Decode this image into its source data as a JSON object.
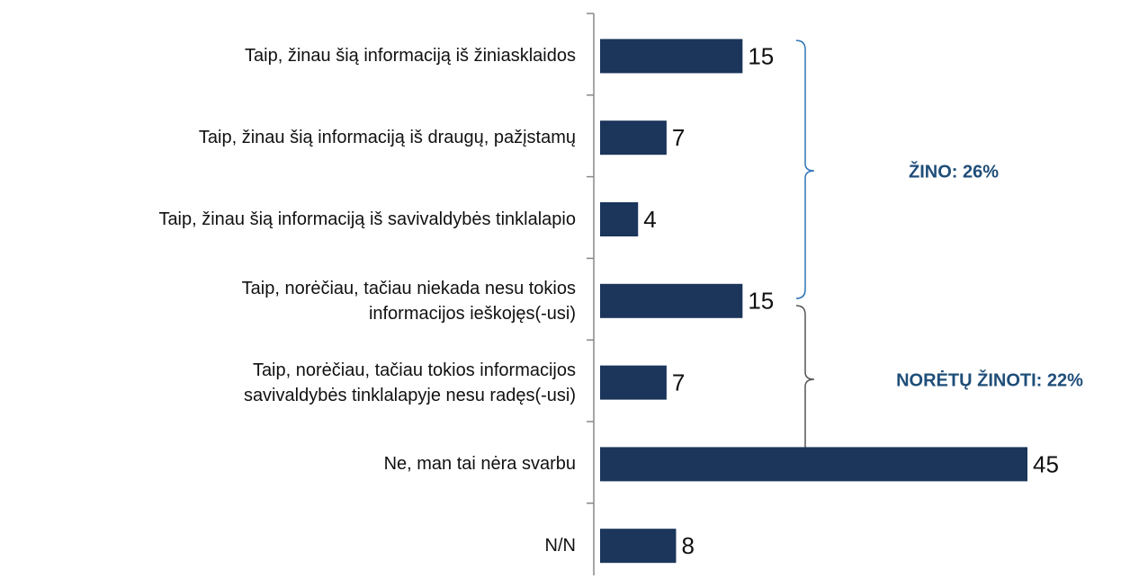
{
  "chart_data": {
    "type": "bar",
    "orientation": "horizontal",
    "categories": [
      "Taip, žinau šią informaciją iš žiniasklaidos",
      "Taip, žinau šią informaciją iš draugų, pažįstamų",
      "Taip, žinau šią informaciją iš savivaldybės tinklalapio",
      "Taip, norėčiau,  tačiau niekada nesu tokios\ninformacijos ieškojęs(-usi)",
      "Taip, norėčiau, tačiau tokios informacijos\nsavivaldybės tinklalapyje nesu radęs(-usi)",
      "Ne, man tai nėra svarbu",
      "N/N"
    ],
    "values": [
      15,
      7,
      4,
      15,
      7,
      45,
      8
    ],
    "color": "#1b355b",
    "annotations": [
      "ŽINO: 26%",
      "NORĖTŲ ŽINOTI: 22%"
    ]
  }
}
